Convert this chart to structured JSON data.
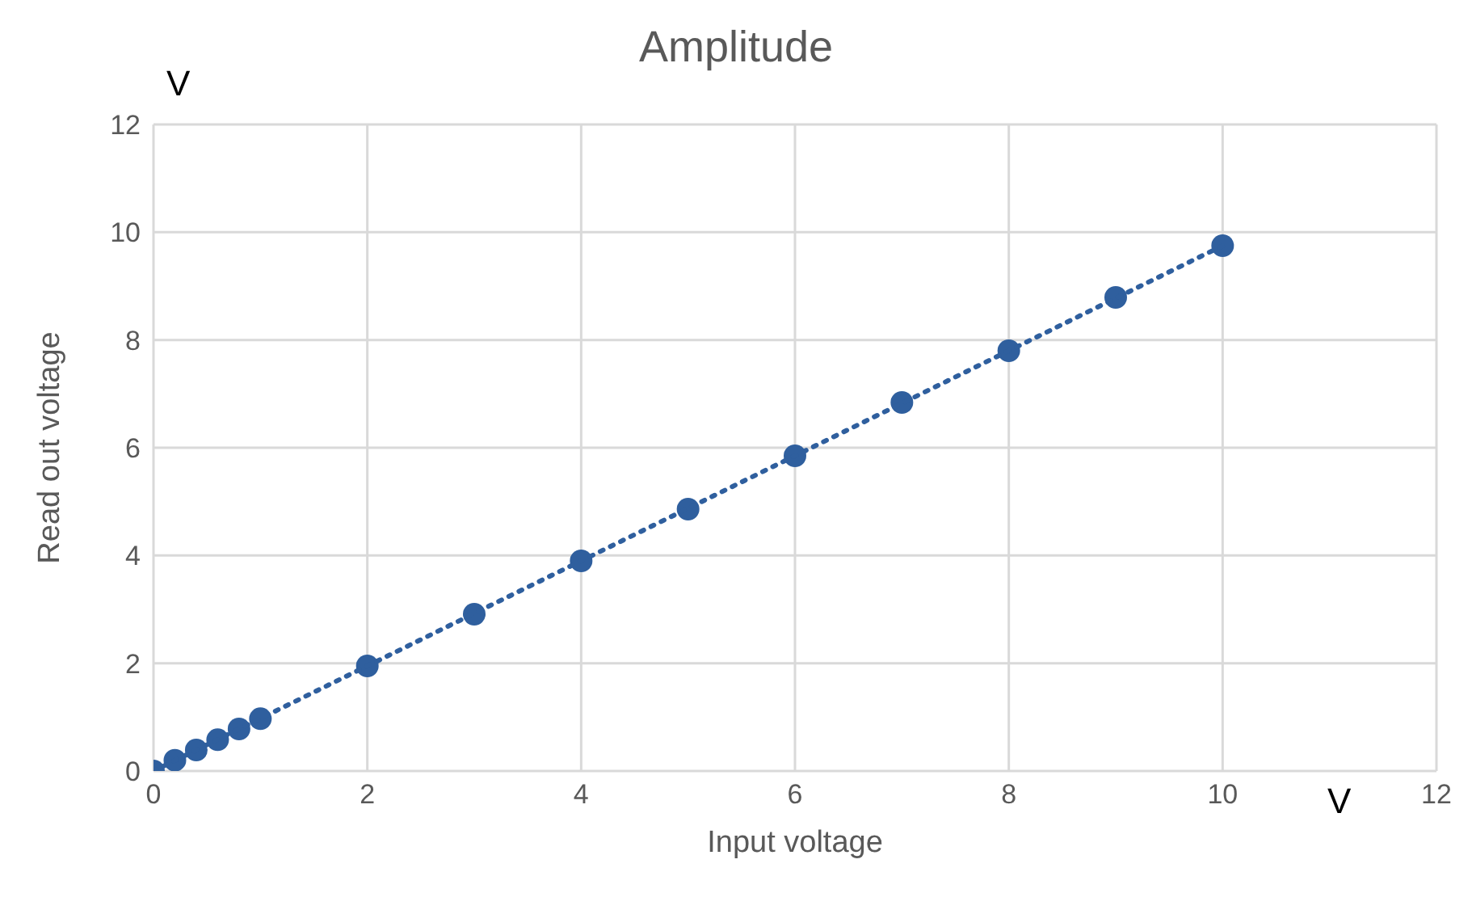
{
  "chart_data": {
    "type": "scatter",
    "title": "Amplitude",
    "xlabel": "Input voltage",
    "ylabel": "Read out voltage",
    "annotations": [
      "V",
      "V"
    ],
    "xlim": [
      0,
      12
    ],
    "xticks": [
      0,
      2,
      4,
      6,
      8,
      10,
      12
    ],
    "ylim": [
      0,
      12
    ],
    "yticks": [
      0,
      2,
      4,
      6,
      8,
      10,
      12
    ],
    "grid": true,
    "legend": false,
    "marker": "circle",
    "series": [
      {
        "color": "#2f5f9e",
        "x": [
          0,
          0.2,
          0.4,
          0.6,
          0.8,
          1,
          2,
          3,
          4,
          5,
          6,
          7,
          8,
          9,
          10
        ],
        "values": [
          0,
          0.2,
          0.39,
          0.58,
          0.78,
          0.97,
          1.95,
          2.91,
          3.9,
          4.86,
          5.85,
          6.84,
          7.8,
          8.79,
          9.75
        ]
      },
      {
        "type": "line",
        "color": "#2f5f9e",
        "line_style": "dotted",
        "marker": "none",
        "x": [
          0,
          10
        ],
        "values": [
          0,
          9.75
        ]
      }
    ]
  }
}
